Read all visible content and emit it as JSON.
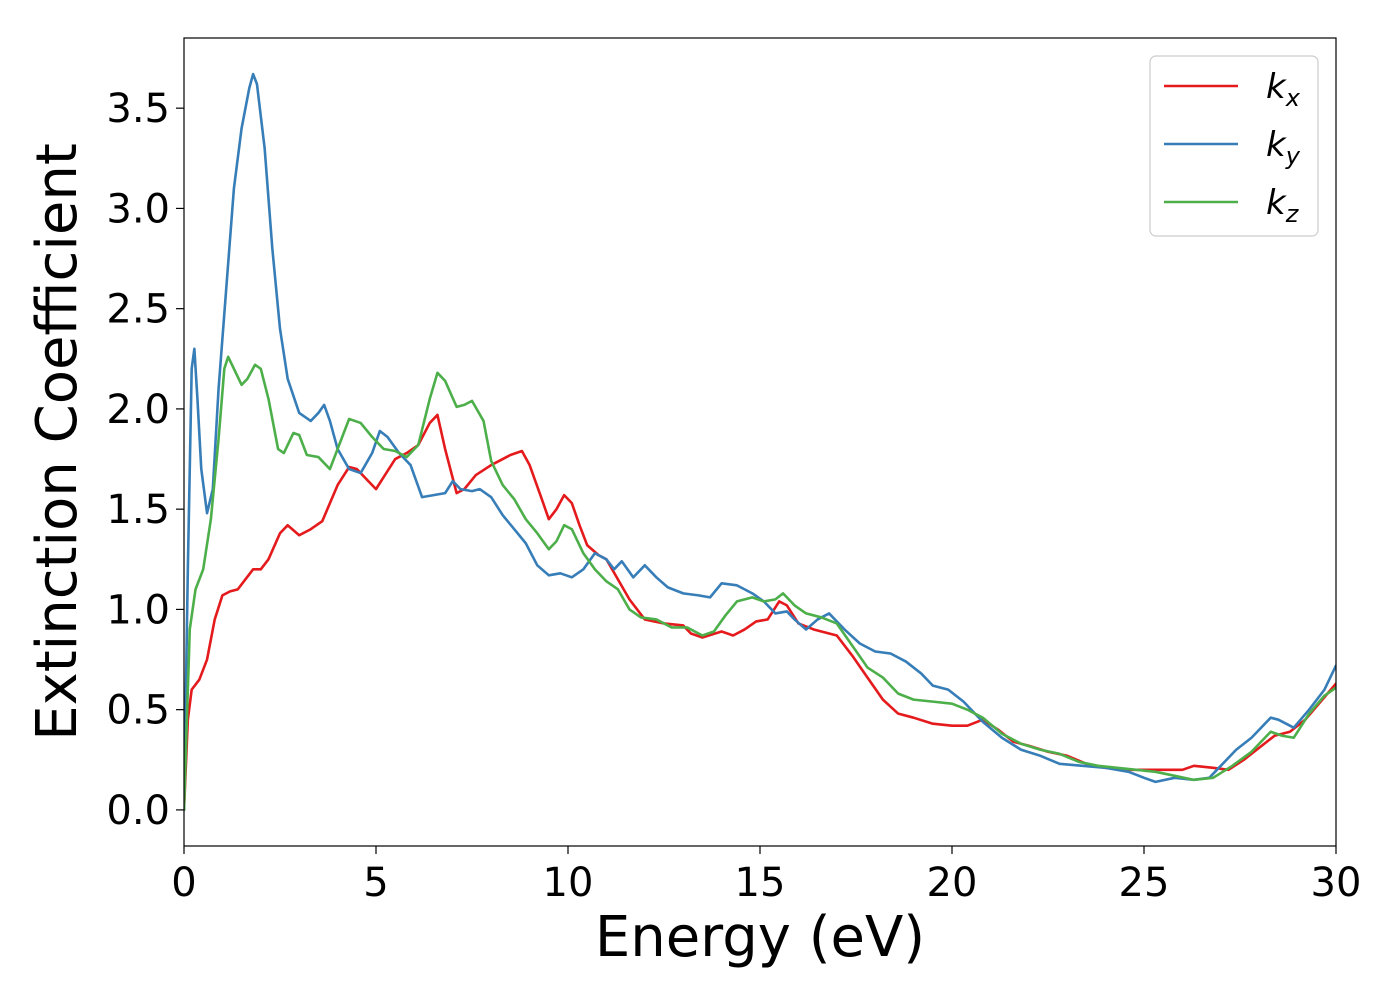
{
  "chart_data": {
    "type": "line",
    "title": "",
    "xlabel": "Energy (eV)",
    "ylabel": "Extinction Coefficient",
    "xlim": [
      0,
      30
    ],
    "ylim": [
      -0.18,
      3.85
    ],
    "xticks": [
      0,
      5,
      10,
      15,
      20,
      25,
      30
    ],
    "yticks": [
      0.0,
      0.5,
      1.0,
      1.5,
      2.0,
      2.5,
      3.0,
      3.5
    ],
    "xtick_labels": [
      "0",
      "5",
      "10",
      "15",
      "20",
      "25",
      "30"
    ],
    "ytick_labels": [
      "0.0",
      "0.5",
      "1.0",
      "1.5",
      "2.0",
      "2.5",
      "3.0",
      "3.5"
    ],
    "grid": false,
    "legend": "top-right",
    "series": [
      {
        "name": "k",
        "subscript": "x",
        "color": "#e41a1c",
        "points": [
          [
            0,
            0.0
          ],
          [
            0.1,
            0.45
          ],
          [
            0.2,
            0.6
          ],
          [
            0.4,
            0.65
          ],
          [
            0.6,
            0.75
          ],
          [
            0.8,
            0.95
          ],
          [
            1.0,
            1.07
          ],
          [
            1.2,
            1.09
          ],
          [
            1.4,
            1.1
          ],
          [
            1.6,
            1.15
          ],
          [
            1.8,
            1.2
          ],
          [
            2.0,
            1.2
          ],
          [
            2.2,
            1.25
          ],
          [
            2.5,
            1.38
          ],
          [
            2.7,
            1.42
          ],
          [
            3.0,
            1.37
          ],
          [
            3.3,
            1.4
          ],
          [
            3.6,
            1.44
          ],
          [
            4.0,
            1.62
          ],
          [
            4.3,
            1.71
          ],
          [
            4.5,
            1.7
          ],
          [
            4.8,
            1.64
          ],
          [
            5.0,
            1.6
          ],
          [
            5.2,
            1.66
          ],
          [
            5.5,
            1.75
          ],
          [
            5.8,
            1.78
          ],
          [
            6.1,
            1.82
          ],
          [
            6.4,
            1.93
          ],
          [
            6.6,
            1.97
          ],
          [
            6.8,
            1.8
          ],
          [
            7.1,
            1.58
          ],
          [
            7.3,
            1.6
          ],
          [
            7.6,
            1.67
          ],
          [
            8.0,
            1.72
          ],
          [
            8.3,
            1.75
          ],
          [
            8.5,
            1.77
          ],
          [
            8.8,
            1.79
          ],
          [
            9.0,
            1.72
          ],
          [
            9.3,
            1.56
          ],
          [
            9.5,
            1.45
          ],
          [
            9.7,
            1.5
          ],
          [
            9.9,
            1.57
          ],
          [
            10.1,
            1.53
          ],
          [
            10.3,
            1.42
          ],
          [
            10.5,
            1.32
          ],
          [
            10.8,
            1.27
          ],
          [
            11.0,
            1.25
          ],
          [
            11.3,
            1.15
          ],
          [
            11.6,
            1.05
          ],
          [
            12.0,
            0.95
          ],
          [
            12.5,
            0.93
          ],
          [
            13.0,
            0.92
          ],
          [
            13.2,
            0.88
          ],
          [
            13.5,
            0.86
          ],
          [
            14.0,
            0.89
          ],
          [
            14.3,
            0.87
          ],
          [
            14.6,
            0.9
          ],
          [
            14.9,
            0.94
          ],
          [
            15.2,
            0.95
          ],
          [
            15.5,
            1.04
          ],
          [
            15.7,
            1.02
          ],
          [
            16.0,
            0.93
          ],
          [
            16.4,
            0.9
          ],
          [
            16.8,
            0.88
          ],
          [
            17.0,
            0.87
          ],
          [
            17.4,
            0.77
          ],
          [
            17.8,
            0.66
          ],
          [
            18.2,
            0.55
          ],
          [
            18.6,
            0.48
          ],
          [
            19.0,
            0.46
          ],
          [
            19.5,
            0.43
          ],
          [
            20.0,
            0.42
          ],
          [
            20.4,
            0.42
          ],
          [
            20.8,
            0.45
          ],
          [
            21.2,
            0.4
          ],
          [
            21.6,
            0.34
          ],
          [
            22.0,
            0.32
          ],
          [
            22.5,
            0.29
          ],
          [
            23.0,
            0.27
          ],
          [
            23.5,
            0.23
          ],
          [
            24.0,
            0.21
          ],
          [
            24.5,
            0.2
          ],
          [
            25.0,
            0.2
          ],
          [
            25.5,
            0.2
          ],
          [
            26.0,
            0.2
          ],
          [
            26.3,
            0.22
          ],
          [
            26.8,
            0.21
          ],
          [
            27.2,
            0.2
          ],
          [
            27.6,
            0.25
          ],
          [
            28.0,
            0.31
          ],
          [
            28.4,
            0.37
          ],
          [
            28.8,
            0.39
          ],
          [
            29.2,
            0.45
          ],
          [
            29.6,
            0.54
          ],
          [
            30.0,
            0.63
          ]
        ]
      },
      {
        "name": "k",
        "subscript": "y",
        "color": "#377eb8",
        "points": [
          [
            0,
            0.0
          ],
          [
            0.1,
            1.2
          ],
          [
            0.2,
            2.2
          ],
          [
            0.27,
            2.3
          ],
          [
            0.35,
            2.05
          ],
          [
            0.45,
            1.7
          ],
          [
            0.6,
            1.48
          ],
          [
            0.75,
            1.6
          ],
          [
            0.9,
            2.1
          ],
          [
            1.1,
            2.6
          ],
          [
            1.3,
            3.1
          ],
          [
            1.5,
            3.4
          ],
          [
            1.7,
            3.6
          ],
          [
            1.8,
            3.67
          ],
          [
            1.9,
            3.62
          ],
          [
            2.1,
            3.3
          ],
          [
            2.3,
            2.8
          ],
          [
            2.5,
            2.4
          ],
          [
            2.7,
            2.15
          ],
          [
            3.0,
            1.98
          ],
          [
            3.3,
            1.94
          ],
          [
            3.5,
            1.98
          ],
          [
            3.65,
            2.02
          ],
          [
            3.8,
            1.94
          ],
          [
            4.0,
            1.8
          ],
          [
            4.3,
            1.7
          ],
          [
            4.6,
            1.68
          ],
          [
            4.9,
            1.78
          ],
          [
            5.1,
            1.89
          ],
          [
            5.3,
            1.86
          ],
          [
            5.6,
            1.78
          ],
          [
            5.9,
            1.72
          ],
          [
            6.2,
            1.56
          ],
          [
            6.5,
            1.57
          ],
          [
            6.8,
            1.58
          ],
          [
            7.0,
            1.64
          ],
          [
            7.2,
            1.6
          ],
          [
            7.5,
            1.59
          ],
          [
            7.7,
            1.6
          ],
          [
            8.0,
            1.56
          ],
          [
            8.3,
            1.47
          ],
          [
            8.6,
            1.4
          ],
          [
            8.9,
            1.33
          ],
          [
            9.2,
            1.22
          ],
          [
            9.5,
            1.17
          ],
          [
            9.8,
            1.18
          ],
          [
            10.1,
            1.16
          ],
          [
            10.4,
            1.2
          ],
          [
            10.7,
            1.28
          ],
          [
            11.0,
            1.25
          ],
          [
            11.2,
            1.2
          ],
          [
            11.4,
            1.24
          ],
          [
            11.7,
            1.16
          ],
          [
            12.0,
            1.22
          ],
          [
            12.3,
            1.16
          ],
          [
            12.6,
            1.11
          ],
          [
            13.0,
            1.08
          ],
          [
            13.4,
            1.07
          ],
          [
            13.7,
            1.06
          ],
          [
            14.0,
            1.13
          ],
          [
            14.4,
            1.12
          ],
          [
            14.8,
            1.08
          ],
          [
            15.1,
            1.04
          ],
          [
            15.4,
            0.98
          ],
          [
            15.7,
            0.99
          ],
          [
            15.9,
            0.95
          ],
          [
            16.2,
            0.9
          ],
          [
            16.5,
            0.95
          ],
          [
            16.8,
            0.98
          ],
          [
            17.2,
            0.9
          ],
          [
            17.6,
            0.83
          ],
          [
            18.0,
            0.79
          ],
          [
            18.4,
            0.78
          ],
          [
            18.8,
            0.74
          ],
          [
            19.2,
            0.68
          ],
          [
            19.5,
            0.62
          ],
          [
            19.9,
            0.6
          ],
          [
            20.3,
            0.54
          ],
          [
            20.8,
            0.44
          ],
          [
            21.3,
            0.36
          ],
          [
            21.8,
            0.3
          ],
          [
            22.3,
            0.27
          ],
          [
            22.8,
            0.23
          ],
          [
            23.4,
            0.22
          ],
          [
            24.0,
            0.21
          ],
          [
            24.6,
            0.19
          ],
          [
            25.0,
            0.16
          ],
          [
            25.3,
            0.14
          ],
          [
            25.8,
            0.16
          ],
          [
            26.3,
            0.15
          ],
          [
            26.7,
            0.16
          ],
          [
            27.0,
            0.22
          ],
          [
            27.4,
            0.3
          ],
          [
            27.8,
            0.36
          ],
          [
            28.3,
            0.46
          ],
          [
            28.5,
            0.45
          ],
          [
            28.9,
            0.41
          ],
          [
            29.3,
            0.5
          ],
          [
            29.7,
            0.6
          ],
          [
            30.0,
            0.72
          ]
        ]
      },
      {
        "name": "k",
        "subscript": "z",
        "color": "#4daf4a",
        "points": [
          [
            0,
            0.0
          ],
          [
            0.15,
            0.9
          ],
          [
            0.3,
            1.1
          ],
          [
            0.5,
            1.2
          ],
          [
            0.7,
            1.45
          ],
          [
            0.9,
            1.85
          ],
          [
            1.05,
            2.2
          ],
          [
            1.15,
            2.26
          ],
          [
            1.3,
            2.2
          ],
          [
            1.5,
            2.12
          ],
          [
            1.65,
            2.15
          ],
          [
            1.85,
            2.22
          ],
          [
            2.0,
            2.2
          ],
          [
            2.2,
            2.05
          ],
          [
            2.45,
            1.8
          ],
          [
            2.6,
            1.78
          ],
          [
            2.85,
            1.88
          ],
          [
            3.0,
            1.87
          ],
          [
            3.2,
            1.77
          ],
          [
            3.5,
            1.76
          ],
          [
            3.8,
            1.7
          ],
          [
            4.0,
            1.8
          ],
          [
            4.3,
            1.95
          ],
          [
            4.6,
            1.93
          ],
          [
            4.9,
            1.86
          ],
          [
            5.2,
            1.8
          ],
          [
            5.5,
            1.79
          ],
          [
            5.8,
            1.76
          ],
          [
            6.1,
            1.82
          ],
          [
            6.4,
            2.05
          ],
          [
            6.6,
            2.18
          ],
          [
            6.8,
            2.14
          ],
          [
            7.1,
            2.01
          ],
          [
            7.3,
            2.02
          ],
          [
            7.5,
            2.04
          ],
          [
            7.8,
            1.94
          ],
          [
            8.0,
            1.74
          ],
          [
            8.3,
            1.62
          ],
          [
            8.6,
            1.55
          ],
          [
            8.9,
            1.45
          ],
          [
            9.2,
            1.38
          ],
          [
            9.5,
            1.3
          ],
          [
            9.7,
            1.34
          ],
          [
            9.9,
            1.42
          ],
          [
            10.1,
            1.4
          ],
          [
            10.4,
            1.28
          ],
          [
            10.7,
            1.2
          ],
          [
            11.0,
            1.14
          ],
          [
            11.3,
            1.1
          ],
          [
            11.6,
            1.0
          ],
          [
            11.9,
            0.96
          ],
          [
            12.3,
            0.95
          ],
          [
            12.7,
            0.91
          ],
          [
            13.1,
            0.91
          ],
          [
            13.5,
            0.87
          ],
          [
            13.8,
            0.89
          ],
          [
            14.1,
            0.97
          ],
          [
            14.4,
            1.04
          ],
          [
            14.8,
            1.06
          ],
          [
            15.1,
            1.04
          ],
          [
            15.4,
            1.05
          ],
          [
            15.6,
            1.08
          ],
          [
            15.9,
            1.02
          ],
          [
            16.2,
            0.98
          ],
          [
            16.6,
            0.96
          ],
          [
            17.0,
            0.93
          ],
          [
            17.4,
            0.82
          ],
          [
            17.8,
            0.71
          ],
          [
            18.2,
            0.66
          ],
          [
            18.6,
            0.58
          ],
          [
            19.0,
            0.55
          ],
          [
            19.5,
            0.54
          ],
          [
            20.0,
            0.53
          ],
          [
            20.4,
            0.5
          ],
          [
            20.8,
            0.46
          ],
          [
            21.3,
            0.38
          ],
          [
            21.8,
            0.33
          ],
          [
            22.3,
            0.3
          ],
          [
            22.8,
            0.28
          ],
          [
            23.3,
            0.24
          ],
          [
            23.8,
            0.22
          ],
          [
            24.3,
            0.21
          ],
          [
            24.8,
            0.2
          ],
          [
            25.3,
            0.19
          ],
          [
            25.8,
            0.17
          ],
          [
            26.3,
            0.15
          ],
          [
            26.8,
            0.16
          ],
          [
            27.3,
            0.22
          ],
          [
            27.8,
            0.29
          ],
          [
            28.3,
            0.39
          ],
          [
            28.6,
            0.37
          ],
          [
            28.9,
            0.36
          ],
          [
            29.3,
            0.48
          ],
          [
            29.7,
            0.57
          ],
          [
            30.0,
            0.61
          ]
        ]
      }
    ]
  }
}
